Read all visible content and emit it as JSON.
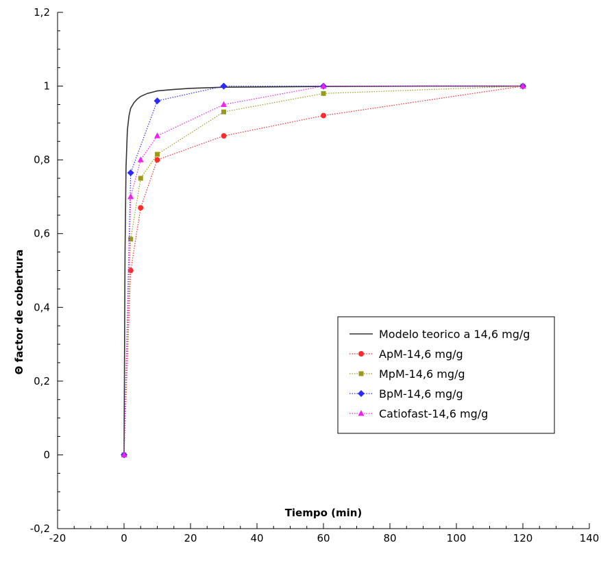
{
  "chart_data": {
    "type": "line",
    "xlabel": "Tiempo (min)",
    "ylabel": "Θ factor de cobertura",
    "xlim": [
      -20,
      140
    ],
    "ylim": [
      -0.2,
      1.2
    ],
    "x_ticks": [
      -20,
      0,
      20,
      40,
      60,
      80,
      100,
      120,
      140
    ],
    "x_tick_labels": [
      "-20",
      "0",
      "20",
      "40",
      "60",
      "80",
      "100",
      "120",
      "140"
    ],
    "y_ticks": [
      -0.2,
      0,
      0.2,
      0.4,
      0.6,
      0.8,
      1,
      1.2
    ],
    "y_tick_labels": [
      "-0,2",
      "0",
      "0,2",
      "0,4",
      "0,6",
      "0,8",
      "1",
      "1,2"
    ],
    "grid": false,
    "legend_position": "right",
    "series": [
      {
        "name": "Modelo teorico a 14,6 mg/g",
        "color": "#333333",
        "style": "line",
        "marker": "none",
        "x": [
          0,
          0.3,
          0.6,
          1,
          1.5,
          2,
          3,
          4,
          5,
          7,
          10,
          15,
          20,
          30,
          45,
          60,
          90,
          120
        ],
        "y": [
          0,
          0.55,
          0.78,
          0.88,
          0.92,
          0.94,
          0.955,
          0.965,
          0.972,
          0.98,
          0.987,
          0.991,
          0.994,
          0.997,
          0.998,
          0.999,
          1.0,
          1.0
        ]
      },
      {
        "name": "ApM-14,6 mg/g",
        "color": "#ff2a2a",
        "style": "dotted",
        "marker": "circle",
        "x": [
          0,
          2,
          5,
          10,
          30,
          60,
          120
        ],
        "y": [
          0,
          0.5,
          0.67,
          0.8,
          0.865,
          0.92,
          1.0
        ]
      },
      {
        "name": "MpM-14,6 mg/g",
        "color": "#9a9a1a",
        "style": "dotted",
        "marker": "square",
        "x": [
          0,
          2,
          5,
          10,
          30,
          60,
          120
        ],
        "y": [
          0,
          0.585,
          0.75,
          0.815,
          0.93,
          0.98,
          1.0
        ]
      },
      {
        "name": "BpM-14,6 mg/g",
        "color": "#2a2aff",
        "style": "dotted",
        "marker": "diamond",
        "x": [
          0,
          2,
          10,
          30,
          60,
          120
        ],
        "y": [
          0,
          0.765,
          0.96,
          1.0,
          1.0,
          1.0
        ]
      },
      {
        "name": "Catiofast-14,6 mg/g",
        "color": "#ee22ee",
        "style": "dotted",
        "marker": "triangle",
        "x": [
          0,
          2,
          5,
          10,
          30,
          60,
          120
        ],
        "y": [
          0,
          0.7,
          0.8,
          0.865,
          0.95,
          1.0,
          1.0
        ]
      }
    ]
  }
}
